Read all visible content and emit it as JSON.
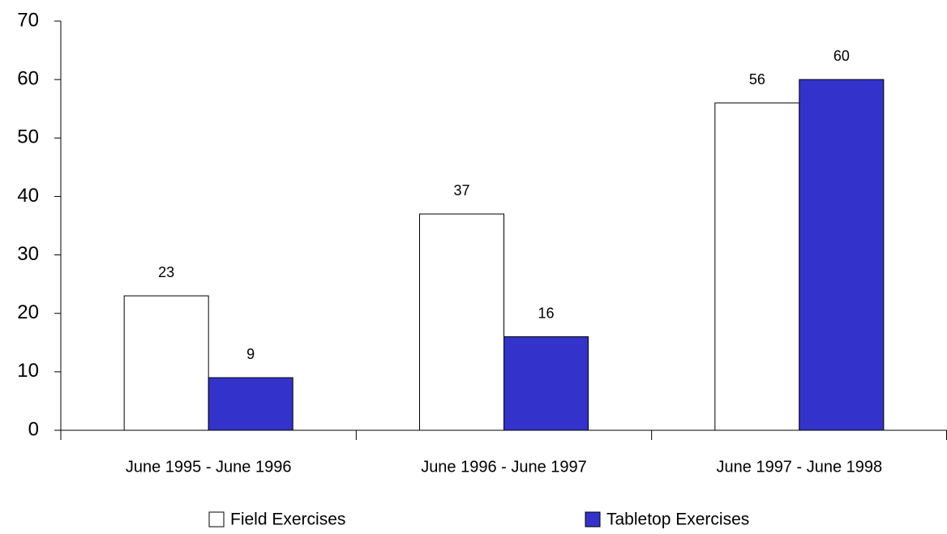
{
  "chart_data": {
    "type": "bar",
    "categories": [
      "June 1995 - June 1996",
      "June 1996 - June 1997",
      "June 1997 - June 1998"
    ],
    "series": [
      {
        "name": "Field Exercises",
        "color": "#ffffff",
        "values": [
          23,
          37,
          56
        ]
      },
      {
        "name": "Tabletop Exercises",
        "color": "#3333cc",
        "values": [
          9,
          16,
          60
        ]
      }
    ],
    "ylim": [
      0,
      70
    ],
    "yticks": [
      0,
      10,
      20,
      30,
      40,
      50,
      60,
      70
    ],
    "grid": false,
    "legend": "bottom"
  }
}
